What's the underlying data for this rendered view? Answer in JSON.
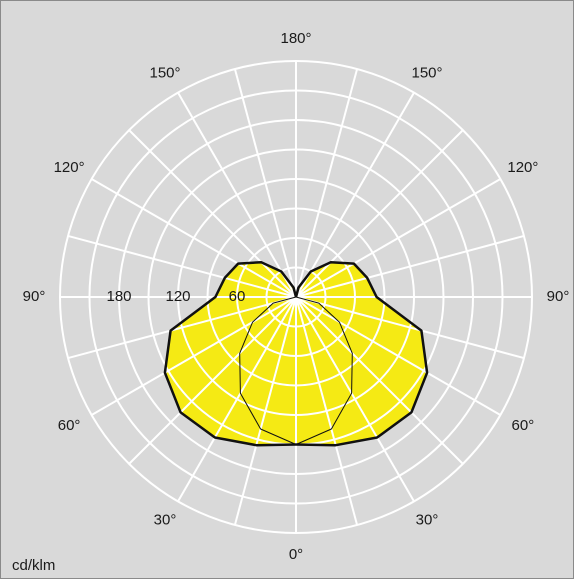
{
  "chart_data": {
    "type": "polar",
    "unit": "cd/klm",
    "angles": [
      0,
      15,
      30,
      45,
      60,
      75,
      90,
      105,
      120,
      135,
      150,
      165,
      180
    ],
    "series": [
      {
        "color": "#111111",
        "fill": "#f5ea14",
        "linewidth": 2.5,
        "values": [
          150,
          156,
          165,
          166,
          154,
          132,
          82,
          75,
          68,
          50,
          30,
          10,
          0
        ]
      },
      {
        "color": "#111111",
        "linewidth": 1,
        "values": [
          150,
          139,
          113,
          81,
          51,
          24,
          0,
          0,
          0,
          0,
          0,
          0,
          0
        ]
      }
    ],
    "rlim": [
      0,
      240
    ],
    "rgrid": [
      30,
      60,
      90,
      120,
      150,
      180,
      210,
      240
    ],
    "rticks": [
      60,
      120,
      180
    ],
    "theta_grid": [
      0,
      15,
      30,
      45,
      60,
      75,
      90,
      105,
      120,
      135,
      150,
      165,
      180
    ],
    "theta_ticks": [
      {
        "value": 0,
        "label": "0°"
      },
      {
        "value": 30,
        "label": "30°"
      },
      {
        "value": 60,
        "label": "60°"
      },
      {
        "value": 90,
        "label": "90°"
      },
      {
        "value": 120,
        "label": "120°"
      },
      {
        "value": 150,
        "label": "150°"
      },
      {
        "value": 180,
        "label": "180°"
      }
    ],
    "background": "#d9d9d9",
    "grid_color": "#ffffff"
  }
}
